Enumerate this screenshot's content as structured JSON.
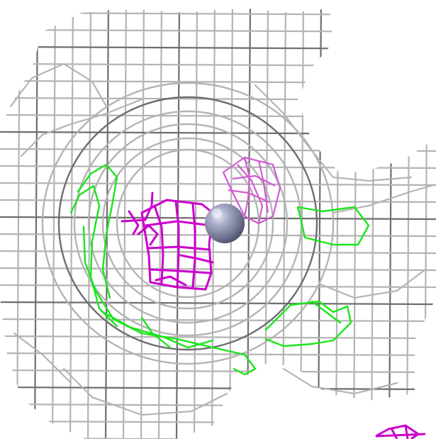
{
  "scene": {
    "background_color": "#ffffff",
    "mesh_colors": {
      "grey_density": "#b4b4b4",
      "grey_dark": "#6e6e6e",
      "green_density": "#19e619",
      "magenta_density": "#cc00cc",
      "light_magenta_density": "#d45ad4",
      "atom_sphere": "#8a8ea8"
    }
  }
}
